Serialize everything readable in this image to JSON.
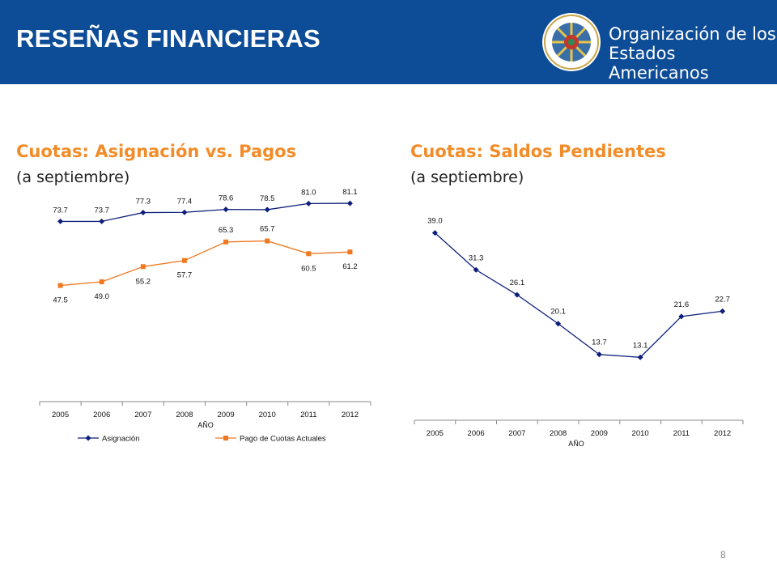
{
  "header": {
    "title": "RESEÑAS FINANCIERAS",
    "org_line1": "Organización de los",
    "org_line2": "Estados Americanos",
    "background_color": "#0d4c96",
    "logo_icon": "oas-seal-icon"
  },
  "page_number": "8",
  "chart_data": [
    {
      "type": "line",
      "title": "Cuotas: Asignación vs. Pagos",
      "subtitle": "(a septiembre)",
      "xlabel": "AÑO",
      "ylabel": "",
      "categories": [
        "2005",
        "2006",
        "2007",
        "2008",
        "2009",
        "2010",
        "2011",
        "2012"
      ],
      "ylim": [
        0,
        100
      ],
      "grid": false,
      "legend_position": "bottom",
      "series": [
        {
          "name": "Asignación",
          "values": [
            73.7,
            73.7,
            77.3,
            77.4,
            78.6,
            78.5,
            81.0,
            81.1
          ],
          "labels": [
            "73.7",
            "73.7",
            "77.3",
            "77.4",
            "78.6",
            "78.5",
            "81.0",
            "81.1"
          ],
          "color": "#0d1f7a",
          "marker": "diamond"
        },
        {
          "name": "Pago de Cuotas Actuales",
          "values": [
            47.5,
            49.0,
            55.2,
            57.7,
            65.3,
            65.7,
            60.5,
            61.2
          ],
          "labels": [
            "47.5",
            "49.0",
            "55.2",
            "57.7",
            "65.3",
            "65.7",
            "60.5",
            "61.2"
          ],
          "color": "#f07820",
          "marker": "square"
        }
      ]
    },
    {
      "type": "line",
      "title": "Cuotas: Saldos Pendientes",
      "subtitle": "(a septiembre)",
      "xlabel": "AÑO",
      "ylabel": "",
      "categories": [
        "2005",
        "2006",
        "2007",
        "2008",
        "2009",
        "2010",
        "2011",
        "2012"
      ],
      "ylim": [
        0,
        45
      ],
      "grid": false,
      "legend_position": "none",
      "series": [
        {
          "values": [
            39.0,
            31.3,
            26.1,
            20.1,
            13.7,
            13.1,
            21.6,
            22.7
          ],
          "labels": [
            "39.0",
            "31.3",
            "26.1",
            "20.1",
            "13.7",
            "13.1",
            "21.6",
            "22.7"
          ],
          "color": "#0d1f7a",
          "marker": "diamond"
        }
      ]
    }
  ]
}
